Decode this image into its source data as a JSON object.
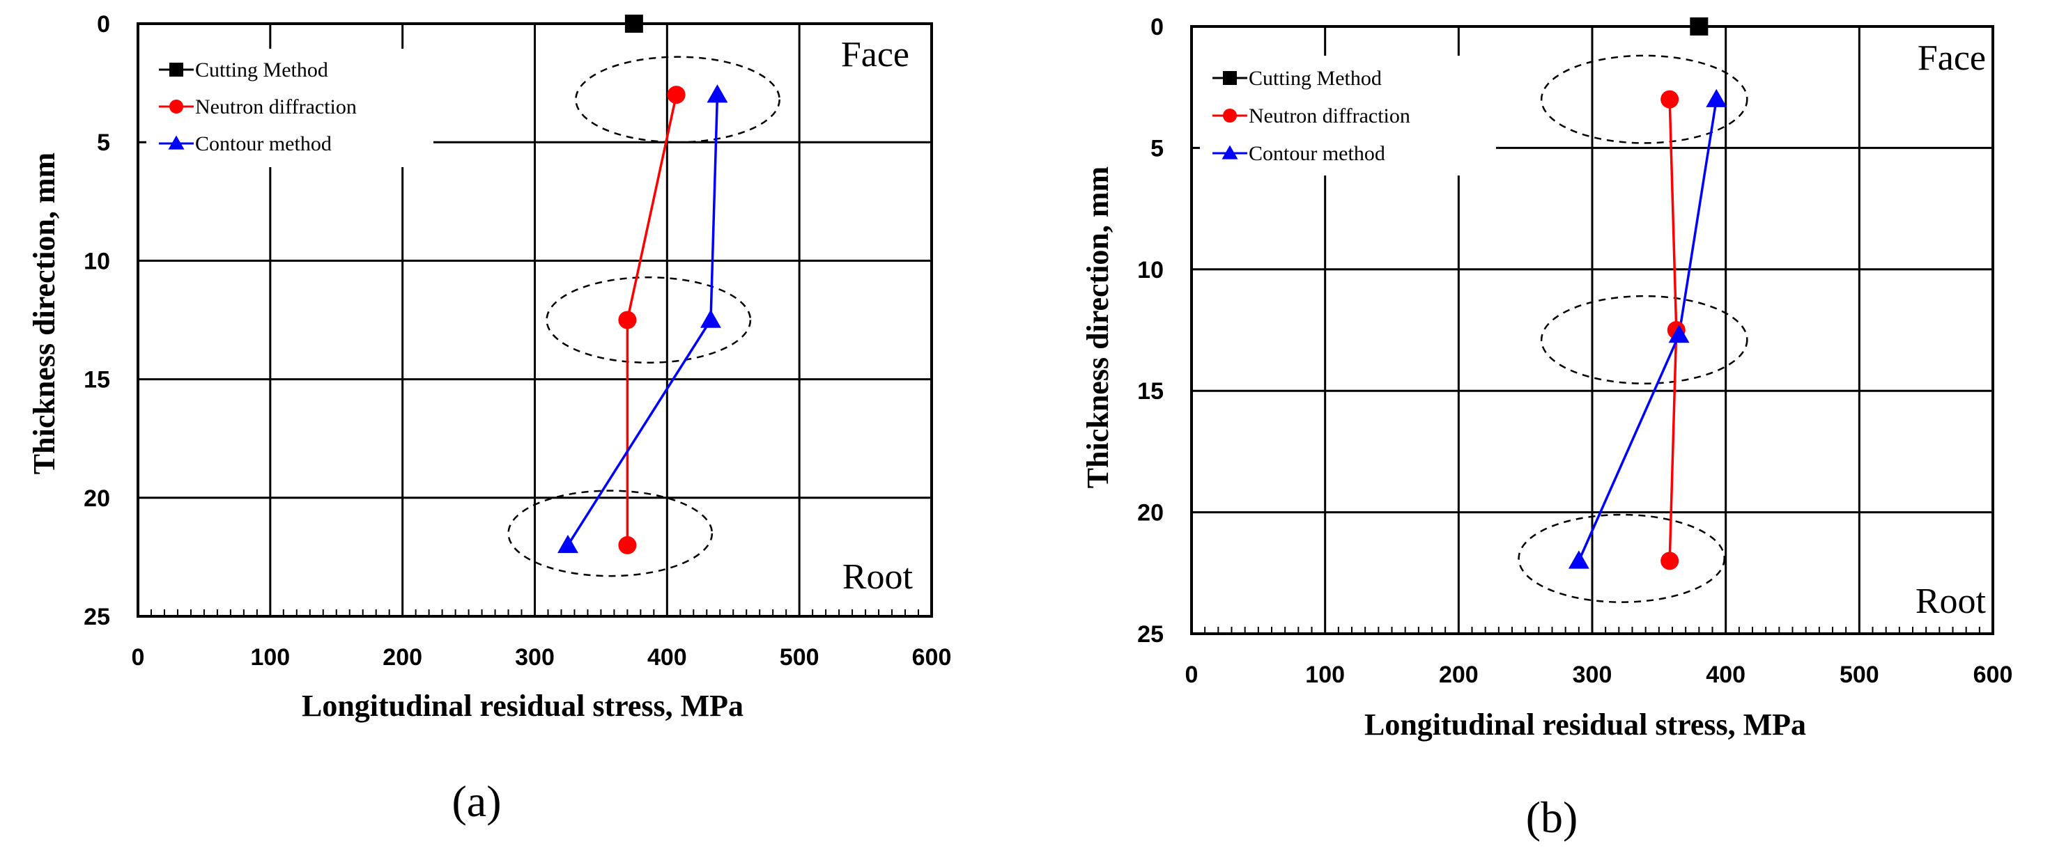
{
  "chart_data": [
    {
      "type": "line",
      "panel_label": "(a)",
      "xlabel": "Longitudinal residual stress, MPa",
      "ylabel": "Thickness direction, mm",
      "xlim": [
        0,
        600
      ],
      "ylim": [
        0,
        25
      ],
      "y_inverted": true,
      "x_ticks": [
        "0",
        "100",
        "200",
        "300",
        "400",
        "500",
        "600"
      ],
      "y_ticks": [
        "0",
        "5",
        "10",
        "15",
        "20",
        "25"
      ],
      "grid": true,
      "legend": "top-left",
      "annotations": {
        "top": "Face",
        "bottom": "Root"
      },
      "series": [
        {
          "name": "Cutting Method",
          "color": "#000000",
          "marker": "square",
          "points": [
            [
              375,
              0
            ]
          ]
        },
        {
          "name": "Neutron diffraction",
          "color": "#ff0000",
          "marker": "circle",
          "points": [
            [
              407,
              3
            ],
            [
              370,
              12.5
            ],
            [
              370,
              22
            ]
          ]
        },
        {
          "name": "Contour method",
          "color": "#0000ff",
          "marker": "triangle",
          "points": [
            [
              438,
              3
            ],
            [
              433,
              12.5
            ],
            [
              325,
              22
            ]
          ]
        }
      ],
      "highlight_ellipses": [
        {
          "cx": 408,
          "cy": 3.2,
          "rx": 77,
          "ry": 1.8
        },
        {
          "cx": 386,
          "cy": 12.5,
          "rx": 77,
          "ry": 1.8
        },
        {
          "cx": 357,
          "cy": 21.5,
          "rx": 77,
          "ry": 1.8
        }
      ]
    },
    {
      "type": "line",
      "panel_label": "(b)",
      "xlabel": "Longitudinal residual stress, MPa",
      "ylabel": "Thickness direction, mm",
      "xlim": [
        0,
        600
      ],
      "ylim": [
        0,
        25
      ],
      "y_inverted": true,
      "x_ticks": [
        "0",
        "100",
        "200",
        "300",
        "400",
        "500",
        "600"
      ],
      "y_ticks": [
        "0",
        "5",
        "10",
        "15",
        "20",
        "25"
      ],
      "grid": true,
      "legend": "top-left",
      "annotations": {
        "top": "Face",
        "bottom": "Root"
      },
      "series": [
        {
          "name": "Cutting Method",
          "color": "#000000",
          "marker": "square",
          "points": [
            [
              380,
              0
            ]
          ]
        },
        {
          "name": "Neutron diffraction",
          "color": "#ff0000",
          "marker": "circle",
          "points": [
            [
              358,
              3
            ],
            [
              363,
              12.5
            ],
            [
              358,
              22
            ]
          ]
        },
        {
          "name": "Contour method",
          "color": "#0000ff",
          "marker": "triangle",
          "points": [
            [
              393,
              3
            ],
            [
              365,
              12.7
            ],
            [
              290,
              22
            ]
          ]
        }
      ],
      "highlight_ellipses": [
        {
          "cx": 339,
          "cy": 3,
          "rx": 77,
          "ry": 1.8
        },
        {
          "cx": 339,
          "cy": 12.9,
          "rx": 77,
          "ry": 1.8
        },
        {
          "cx": 322,
          "cy": 21.9,
          "rx": 77,
          "ry": 1.8
        }
      ]
    }
  ]
}
